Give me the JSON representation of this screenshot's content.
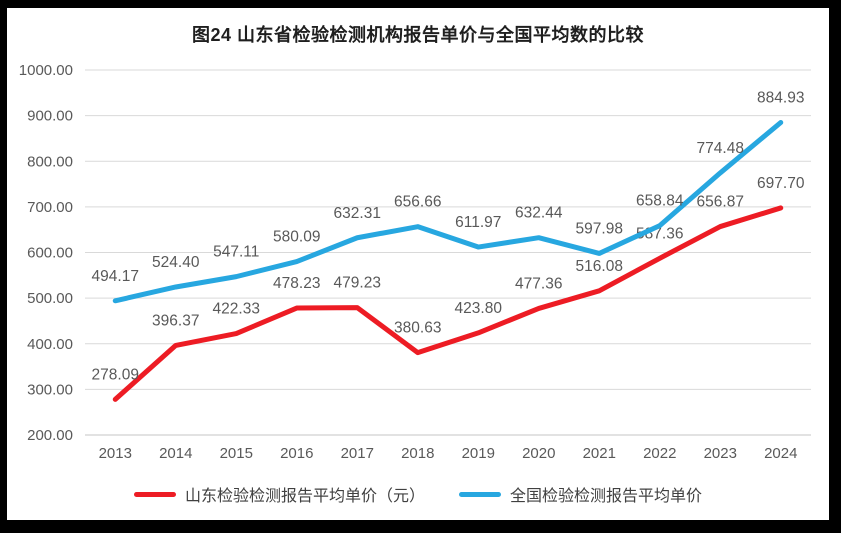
{
  "title": "图24  山东省检验检测机构报告单价与全国平均数的比较",
  "colors": {
    "shandong": "#ed1c24",
    "national": "#27a7e0",
    "grid": "#d9d9d9",
    "axis_line": "#c6c6c6",
    "tick_label": "#595959",
    "data_label": "#595959",
    "title_text": "#1f1f1f",
    "frame": "#000000",
    "surface": "#ffffff"
  },
  "chart_data": {
    "type": "line",
    "categories": [
      "2013",
      "2014",
      "2015",
      "2016",
      "2017",
      "2018",
      "2019",
      "2020",
      "2021",
      "2022",
      "2023",
      "2024"
    ],
    "series": [
      {
        "name": "山东检验检测报告平均单价（元）",
        "color_key": "shandong",
        "values": [
          278.09,
          396.37,
          422.33,
          478.23,
          479.23,
          380.63,
          423.8,
          477.36,
          516.08,
          587.36,
          656.87,
          697.7
        ]
      },
      {
        "name": "全国检验检测报告平均单价",
        "color_key": "national",
        "values": [
          494.17,
          524.4,
          547.11,
          580.09,
          632.31,
          656.66,
          611.97,
          632.44,
          597.98,
          658.84,
          774.48,
          884.93
        ]
      }
    ],
    "ylim": [
      200,
      1000
    ],
    "ytick_step": 100,
    "ytick_format": "0.00",
    "grid": true,
    "data_labels": true,
    "legend_position": "bottom"
  }
}
